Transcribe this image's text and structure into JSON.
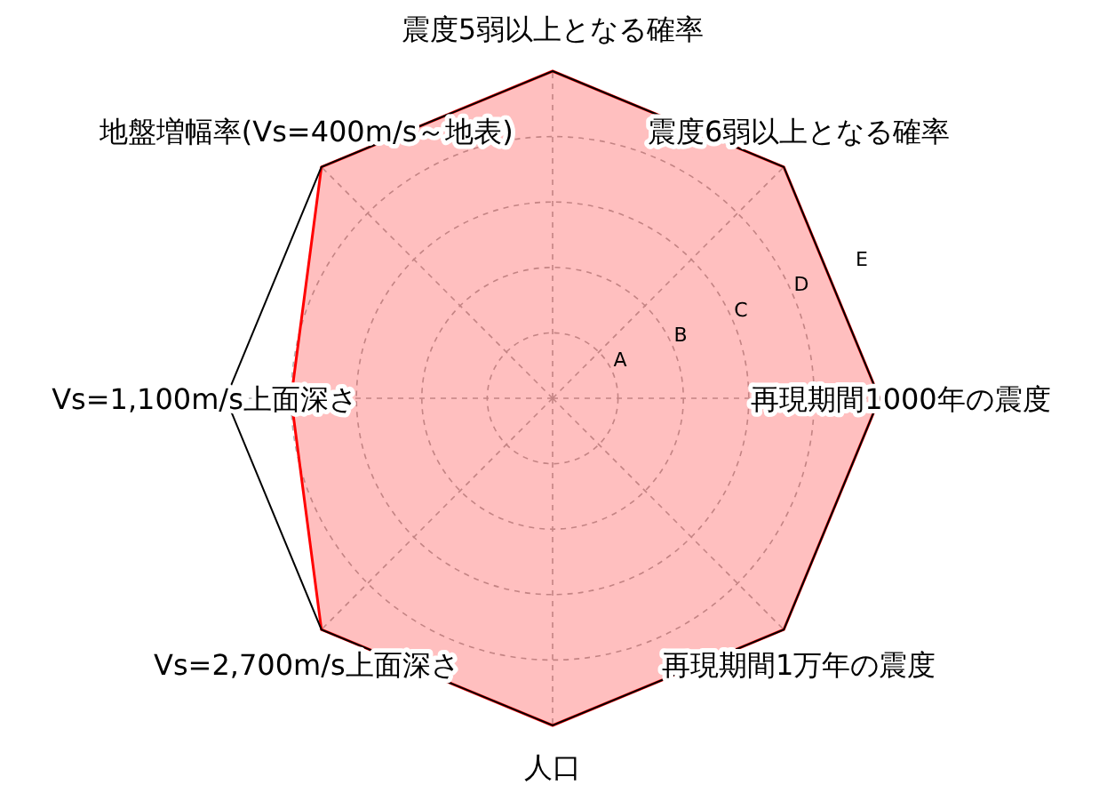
{
  "chart_data": {
    "type": "radar",
    "categories": [
      "震度5弱以上となる確率",
      "震度6弱以上となる確率",
      "再現期間1000年の震度",
      "再現期間1万年の震度",
      "人口",
      "Vs=2,700m/s上面深さ",
      "Vs=1,100m/s上面深さ",
      "地盤増幅率(Vs=400m/s～地表)"
    ],
    "series": [
      {
        "color": "#ff0000",
        "values": [
          5,
          5,
          5,
          5,
          5,
          5,
          4,
          5
        ]
      }
    ],
    "ylim": [
      0,
      5
    ],
    "yticks": [
      {
        "value": 1,
        "label": "A"
      },
      {
        "value": 2,
        "label": "B"
      },
      {
        "value": 3,
        "label": "C"
      },
      {
        "value": 4,
        "label": "D"
      },
      {
        "value": 5,
        "label": "E"
      }
    ],
    "grid": true
  }
}
